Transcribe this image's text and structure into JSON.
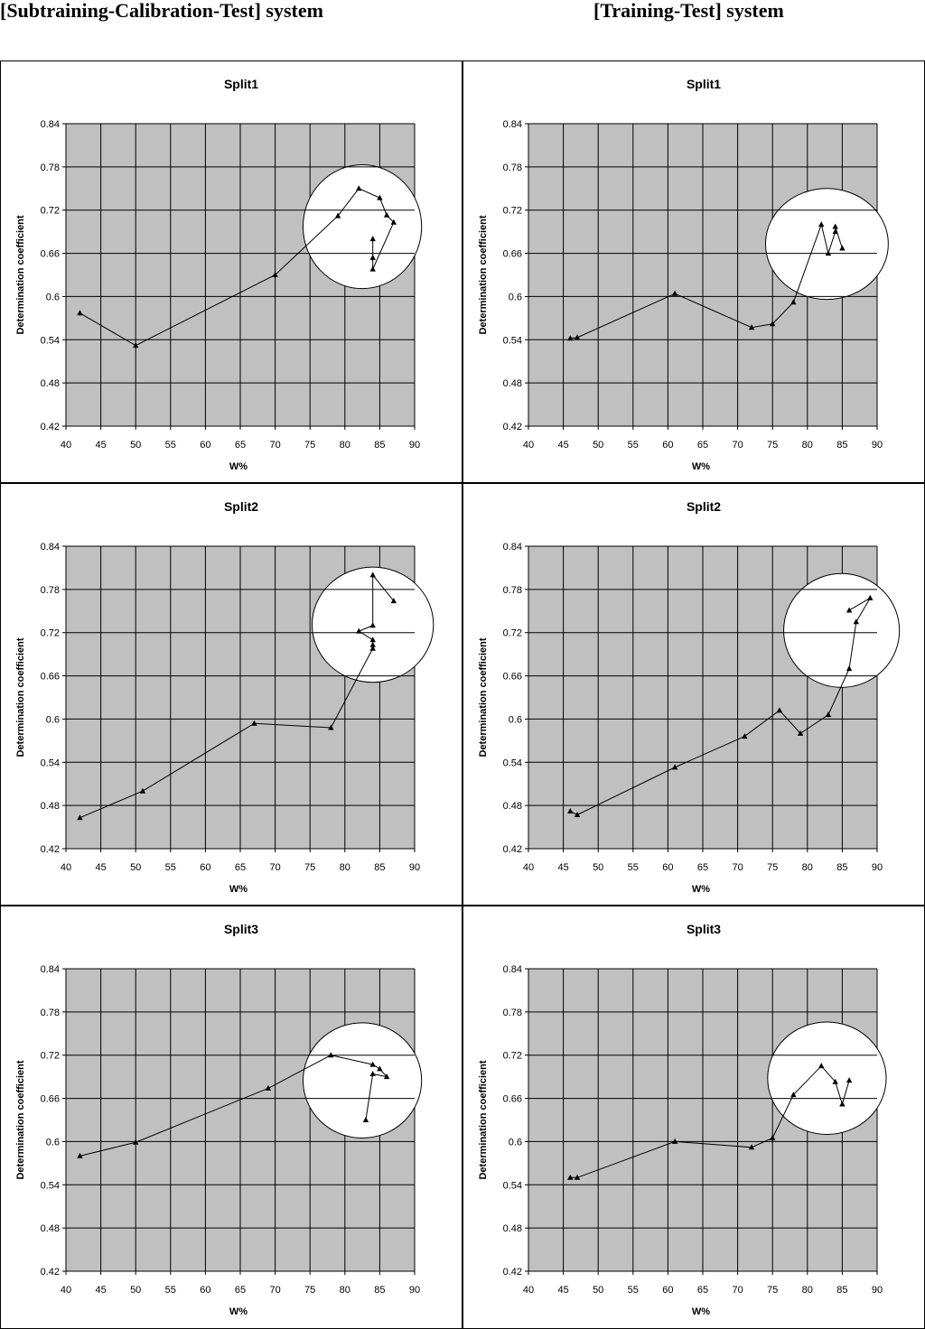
{
  "headers": {
    "left": "[Subtraining-Calibration-Test] system",
    "right": "[Training-Test] system"
  },
  "colors": {
    "plot_background": "#c0c0c0",
    "gridline": "#000000",
    "series_line": "#000000",
    "circle_fill": "#ffffff"
  },
  "chart_data": [
    {
      "type": "line",
      "system": "[Subtraining-Calibration-Test] system",
      "title": "Split1",
      "xlabel": "W%",
      "ylabel": "Determination coefficient",
      "xlim": [
        40,
        90
      ],
      "ylim": [
        0.42,
        0.84
      ],
      "x_ticks": [
        "40",
        "45",
        "50",
        "55",
        "60",
        "65",
        "70",
        "75",
        "80",
        "85",
        "90"
      ],
      "y_ticks": [
        "0.42",
        "0.48",
        "0.54",
        "0.6",
        "0.66",
        "0.72",
        "0.78",
        "0.84"
      ],
      "grid": true,
      "marker": "triangle",
      "points": [
        [
          42,
          0.577
        ],
        [
          50,
          0.532
        ],
        [
          70,
          0.63
        ],
        [
          79,
          0.712
        ],
        [
          82,
          0.75
        ],
        [
          85,
          0.737
        ],
        [
          86,
          0.713
        ],
        [
          87,
          0.703
        ],
        [
          84,
          0.638
        ],
        [
          84,
          0.654
        ],
        [
          84,
          0.68
        ]
      ],
      "highlight_circle": {
        "cx": 82.5,
        "cy": 0.697,
        "rx": 8.5,
        "ry": 0.086
      }
    },
    {
      "type": "line",
      "system": "[Training-Test] system",
      "title": "Split1",
      "xlabel": "W%",
      "ylabel": "Determination coefficient",
      "xlim": [
        40,
        90
      ],
      "ylim": [
        0.42,
        0.84
      ],
      "x_ticks": [
        "40",
        "45",
        "50",
        "55",
        "60",
        "65",
        "70",
        "75",
        "80",
        "85",
        "90"
      ],
      "y_ticks": [
        "0.42",
        "0.48",
        "0.54",
        "0.6",
        "0.66",
        "0.72",
        "0.78",
        "0.84"
      ],
      "grid": true,
      "marker": "triangle",
      "points": [
        [
          46,
          0.542
        ],
        [
          47,
          0.543
        ],
        [
          61,
          0.604
        ],
        [
          72,
          0.557
        ],
        [
          75,
          0.562
        ],
        [
          78,
          0.592
        ],
        [
          82,
          0.7
        ],
        [
          83,
          0.66
        ],
        [
          84,
          0.69
        ],
        [
          84,
          0.697
        ],
        [
          85,
          0.667
        ]
      ],
      "highlight_circle": {
        "cx": 82.8,
        "cy": 0.673,
        "rx": 8.8,
        "ry": 0.077
      }
    },
    {
      "type": "line",
      "system": "[Subtraining-Calibration-Test] system",
      "title": "Split2",
      "xlabel": "W%",
      "ylabel": "Determination coefficient",
      "xlim": [
        40,
        90
      ],
      "ylim": [
        0.42,
        0.84
      ],
      "x_ticks": [
        "40",
        "45",
        "50",
        "55",
        "60",
        "65",
        "70",
        "75",
        "80",
        "85",
        "90"
      ],
      "y_ticks": [
        "0.42",
        "0.48",
        "0.54",
        "0.6",
        "0.66",
        "0.72",
        "0.78",
        "0.84"
      ],
      "grid": true,
      "marker": "triangle",
      "points": [
        [
          42,
          0.463
        ],
        [
          51,
          0.5
        ],
        [
          67,
          0.594
        ],
        [
          78,
          0.588
        ],
        [
          84,
          0.698
        ],
        [
          84,
          0.703
        ],
        [
          84,
          0.71
        ],
        [
          82,
          0.722
        ],
        [
          84,
          0.73
        ],
        [
          84,
          0.8
        ],
        [
          87,
          0.764
        ]
      ],
      "highlight_circle": {
        "cx": 84.0,
        "cy": 0.731,
        "rx": 8.7,
        "ry": 0.08
      }
    },
    {
      "type": "line",
      "system": "[Training-Test] system",
      "title": "Split2",
      "xlabel": "W%",
      "ylabel": "Determination coefficient",
      "xlim": [
        40,
        90
      ],
      "ylim": [
        0.42,
        0.84
      ],
      "x_ticks": [
        "40",
        "45",
        "50",
        "55",
        "60",
        "65",
        "70",
        "75",
        "80",
        "85",
        "90"
      ],
      "y_ticks": [
        "0.42",
        "0.48",
        "0.54",
        "0.6",
        "0.66",
        "0.72",
        "0.78",
        "0.84"
      ],
      "grid": true,
      "marker": "triangle",
      "points": [
        [
          46,
          0.472
        ],
        [
          47,
          0.467
        ],
        [
          61,
          0.533
        ],
        [
          71,
          0.576
        ],
        [
          76,
          0.612
        ],
        [
          79,
          0.58
        ],
        [
          83,
          0.606
        ],
        [
          86,
          0.67
        ],
        [
          87,
          0.735
        ],
        [
          89,
          0.768
        ],
        [
          86,
          0.751
        ]
      ],
      "highlight_circle": {
        "cx": 84.9,
        "cy": 0.723,
        "rx": 8.3,
        "ry": 0.079
      }
    },
    {
      "type": "line",
      "system": "[Subtraining-Calibration-Test] system",
      "title": "Split3",
      "xlabel": "W%",
      "ylabel": "Determination coefficient",
      "xlim": [
        40,
        90
      ],
      "ylim": [
        0.42,
        0.84
      ],
      "x_ticks": [
        "40",
        "45",
        "50",
        "55",
        "60",
        "65",
        "70",
        "75",
        "80",
        "85",
        "90"
      ],
      "y_ticks": [
        "0.42",
        "0.48",
        "0.54",
        "0.6",
        "0.66",
        "0.72",
        "0.78",
        "0.84"
      ],
      "grid": true,
      "marker": "triangle",
      "points": [
        [
          42,
          0.58
        ],
        [
          50,
          0.599
        ],
        [
          69,
          0.674
        ],
        [
          78,
          0.72
        ],
        [
          84,
          0.707
        ],
        [
          85,
          0.701
        ],
        [
          86,
          0.69
        ],
        [
          84,
          0.694
        ],
        [
          83,
          0.63
        ]
      ],
      "highlight_circle": {
        "cx": 82.5,
        "cy": 0.685,
        "rx": 8.5,
        "ry": 0.08
      }
    },
    {
      "type": "line",
      "system": "[Training-Test] system",
      "title": "Split3",
      "xlabel": "W%",
      "ylabel": "Determination coefficient",
      "xlim": [
        40,
        90
      ],
      "ylim": [
        0.42,
        0.84
      ],
      "x_ticks": [
        "40",
        "45",
        "50",
        "55",
        "60",
        "65",
        "70",
        "75",
        "80",
        "85",
        "90"
      ],
      "y_ticks": [
        "0.42",
        "0.48",
        "0.54",
        "0.6",
        "0.66",
        "0.72",
        "0.78",
        "0.84"
      ],
      "grid": true,
      "marker": "triangle",
      "points": [
        [
          46,
          0.55
        ],
        [
          47,
          0.55
        ],
        [
          61,
          0.6
        ],
        [
          72,
          0.592
        ],
        [
          75,
          0.605
        ],
        [
          78,
          0.665
        ],
        [
          82,
          0.705
        ],
        [
          84,
          0.683
        ],
        [
          85,
          0.652
        ],
        [
          86,
          0.685
        ]
      ],
      "highlight_circle": {
        "cx": 82.8,
        "cy": 0.688,
        "rx": 8.5,
        "ry": 0.078
      }
    }
  ]
}
